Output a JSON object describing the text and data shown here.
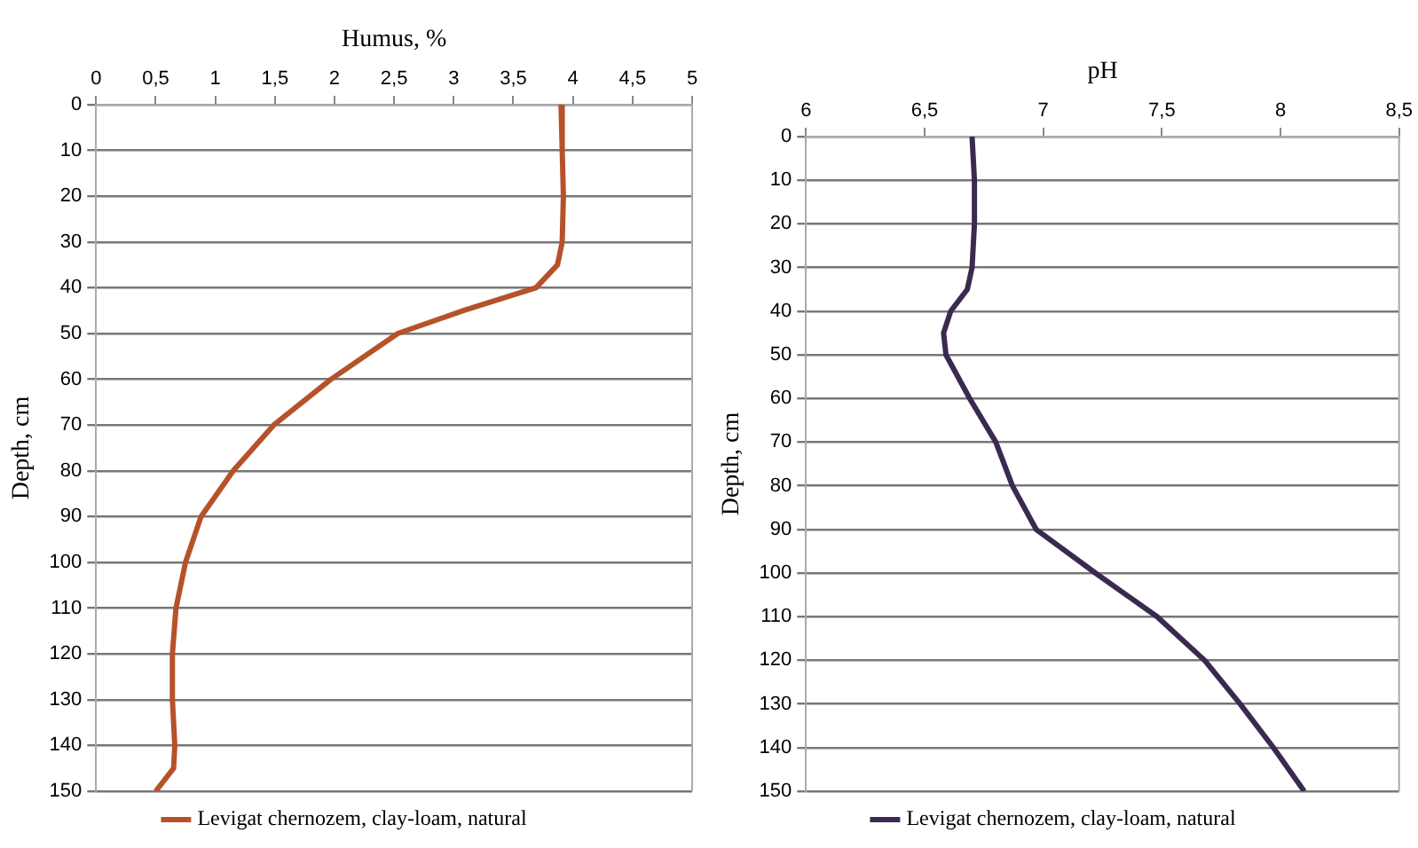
{
  "chart_data": [
    {
      "type": "line",
      "xlabel": "Humus, %",
      "ylabel": "Depth, cm",
      "xlim": [
        0,
        5
      ],
      "xticks": [
        0,
        {
          "value": 0.5,
          "label": "0,5"
        },
        1,
        {
          "value": 1.5,
          "label": "1,5"
        },
        2,
        {
          "value": 2.5,
          "label": "2,5"
        },
        3,
        {
          "value": 3.5,
          "label": "3,5"
        },
        4,
        {
          "value": 4.5,
          "label": "4,5"
        },
        5
      ],
      "ylim": [
        150,
        0
      ],
      "yticks": [
        0,
        10,
        20,
        30,
        40,
        50,
        60,
        70,
        80,
        90,
        100,
        110,
        120,
        130,
        140,
        150
      ],
      "grid": "y",
      "legend": "bottom",
      "marker": "none",
      "line_style": "solid",
      "series": [
        {
          "name": "Levigat chernozem, clay-loam, natural",
          "color": "#b5522a",
          "x": [
            3.9,
            3.91,
            3.92,
            3.91,
            3.87,
            3.69,
            3.08,
            2.53,
            1.97,
            1.49,
            1.15,
            0.88,
            0.75,
            0.67,
            0.64,
            0.64,
            0.66,
            0.65,
            0.5
          ],
          "values": [
            0,
            10,
            20,
            30,
            35,
            40,
            45,
            50,
            60,
            70,
            80,
            90,
            100,
            110,
            120,
            130,
            140,
            145,
            150
          ]
        }
      ]
    },
    {
      "type": "line",
      "xlabel": "pH",
      "ylabel": "Depth, cm",
      "xlim": [
        6,
        8.5
      ],
      "xticks": [
        6,
        {
          "value": 6.5,
          "label": "6,5"
        },
        7,
        {
          "value": 7.5,
          "label": "7,5"
        },
        8,
        {
          "value": 8.5,
          "label": "8,5"
        }
      ],
      "ylim": [
        150,
        0
      ],
      "yticks": [
        0,
        10,
        20,
        30,
        40,
        50,
        60,
        70,
        80,
        90,
        100,
        110,
        120,
        130,
        140,
        150
      ],
      "grid": "y",
      "legend": "bottom",
      "marker": "none",
      "line_style": "solid",
      "series": [
        {
          "name": "Levigat chernozem, clay-loam, natural",
          "color": "#3b2a4f",
          "x": [
            6.7,
            6.71,
            6.71,
            6.7,
            6.68,
            6.61,
            6.58,
            6.59,
            6.69,
            6.8,
            6.87,
            6.97,
            7.22,
            7.48,
            7.68,
            7.83,
            7.97,
            8.1
          ],
          "values": [
            0,
            10,
            20,
            30,
            35,
            40,
            45,
            50,
            60,
            70,
            80,
            90,
            100,
            110,
            120,
            130,
            140,
            150
          ]
        }
      ]
    }
  ]
}
